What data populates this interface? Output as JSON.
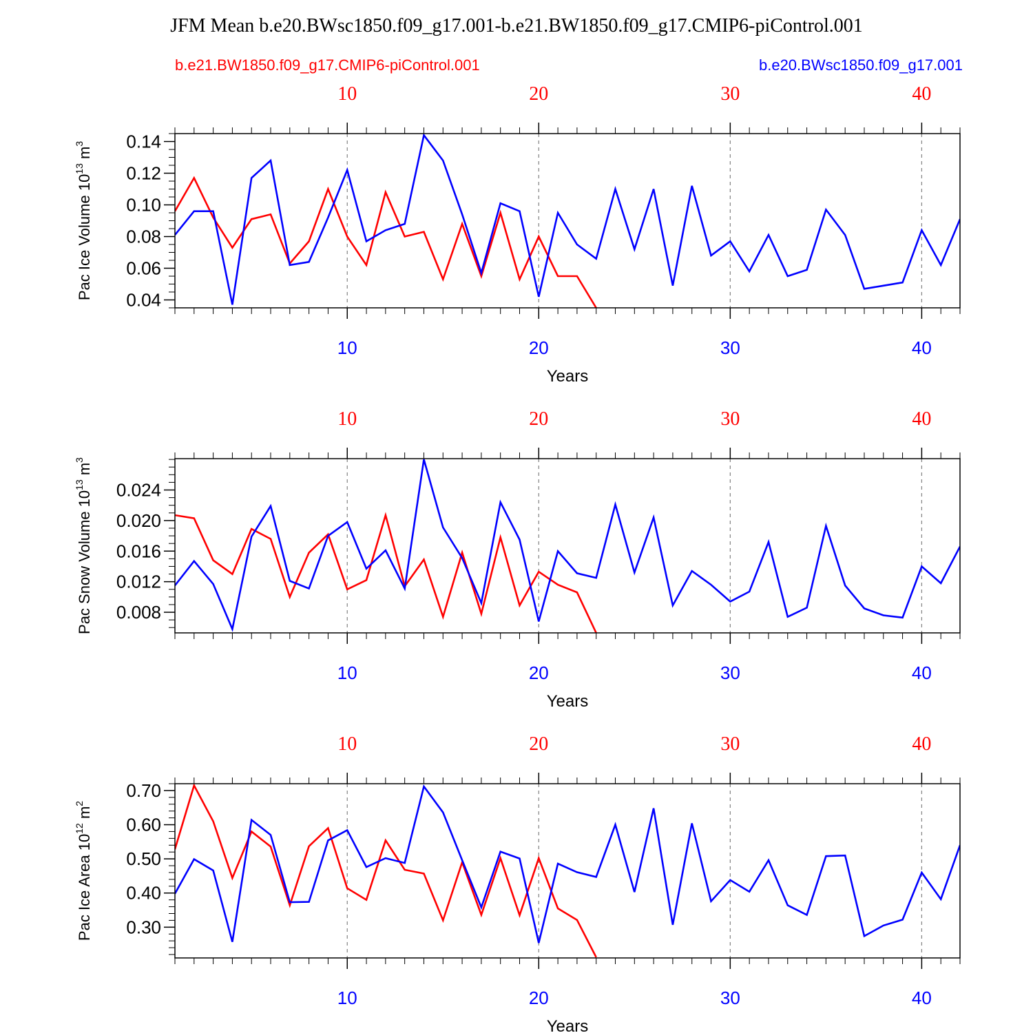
{
  "title": "JFM Mean b.e20.BWsc1850.f09_g17.001-b.e21.BW1850.f09_g17.CMIP6-piControl.001",
  "colors": {
    "case1": "#ff0000",
    "case2": "#0000ff",
    "axis": "#000000",
    "grid": "#808080"
  },
  "legend": {
    "left": "b.e21.BW1850.f09_g17.CMIP6-piControl.001",
    "right": "b.e20.BWsc1850.f09_g17.001"
  },
  "chart_data": [
    {
      "type": "line",
      "ylabel_main": "Pac Ice Volume 10",
      "ylabel_exp": "13",
      "ylabel_unit": " m",
      "ylabel_unit_exp": "3",
      "xlabel": "Years",
      "xlim": [
        1,
        42
      ],
      "ylim": [
        0.035,
        0.145
      ],
      "yticks": [
        0.04,
        0.06,
        0.08,
        0.1,
        0.12,
        0.14
      ],
      "ytick_labels": [
        "0.04",
        "0.06",
        "0.08",
        "0.10",
        "0.12",
        "0.14"
      ],
      "yminor_step": 0.005,
      "xticks": [
        10,
        20,
        30,
        40
      ],
      "xtick_labels": [
        "10",
        "20",
        "30",
        "40"
      ],
      "series": [
        {
          "name": "b.e21.BW1850.f09_g17.CMIP6-piControl.001",
          "color": "#ff0000",
          "x": [
            1,
            2,
            3,
            4,
            5,
            6,
            7,
            8,
            9,
            10,
            11,
            12,
            13,
            14,
            15,
            16,
            17,
            18,
            19,
            20,
            21,
            22,
            23
          ],
          "values": [
            0.096,
            0.117,
            0.092,
            0.073,
            0.091,
            0.094,
            0.063,
            0.077,
            0.11,
            0.08,
            0.062,
            0.108,
            0.08,
            0.083,
            0.053,
            0.088,
            0.055,
            0.095,
            0.053,
            0.08,
            0.055,
            0.055,
            0.035
          ]
        },
        {
          "name": "b.e20.BWsc1850.f09_g17.001",
          "color": "#0000ff",
          "x": [
            1,
            2,
            3,
            4,
            5,
            6,
            7,
            8,
            9,
            10,
            11,
            12,
            13,
            14,
            15,
            16,
            17,
            18,
            19,
            20,
            21,
            22,
            23,
            24,
            25,
            26,
            27,
            28,
            29,
            30,
            31,
            32,
            33,
            34,
            35,
            36,
            37,
            38,
            39,
            40,
            41,
            42
          ],
          "values": [
            0.081,
            0.096,
            0.096,
            0.037,
            0.117,
            0.128,
            0.062,
            0.064,
            0.092,
            0.122,
            0.077,
            0.084,
            0.088,
            0.144,
            0.128,
            0.094,
            0.057,
            0.101,
            0.096,
            0.042,
            0.095,
            0.075,
            0.066,
            0.11,
            0.072,
            0.11,
            0.049,
            0.112,
            0.068,
            0.077,
            0.058,
            0.081,
            0.055,
            0.059,
            0.097,
            0.081,
            0.047,
            0.049,
            0.051,
            0.084,
            0.062,
            0.091
          ]
        }
      ]
    },
    {
      "type": "line",
      "ylabel_main": "Pac Snow Volume 10",
      "ylabel_exp": "13",
      "ylabel_unit": " m",
      "ylabel_unit_exp": "3",
      "xlabel": "Years",
      "xlim": [
        1,
        42
      ],
      "ylim": [
        0.0053,
        0.0281
      ],
      "yticks": [
        0.008,
        0.012,
        0.016,
        0.02,
        0.024
      ],
      "ytick_labels": [
        "0.008",
        "0.012",
        "0.016",
        "0.020",
        "0.024"
      ],
      "yminor_step": 0.001,
      "xticks": [
        10,
        20,
        30,
        40
      ],
      "xtick_labels": [
        "10",
        "20",
        "30",
        "40"
      ],
      "series": [
        {
          "name": "b.e21.BW1850.f09_g17.CMIP6-piControl.001",
          "color": "#ff0000",
          "x": [
            1,
            2,
            3,
            4,
            5,
            6,
            7,
            8,
            9,
            10,
            11,
            12,
            13,
            14,
            15,
            16,
            17,
            18,
            19,
            20,
            21,
            22,
            23
          ],
          "values": [
            0.0207,
            0.0203,
            0.0148,
            0.013,
            0.0189,
            0.0176,
            0.01,
            0.0158,
            0.0182,
            0.011,
            0.0122,
            0.0207,
            0.0114,
            0.0149,
            0.0074,
            0.0158,
            0.0078,
            0.0178,
            0.0089,
            0.0133,
            0.0116,
            0.0106,
            0.0053
          ]
        },
        {
          "name": "b.e20.BWsc1850.f09_g17.001",
          "color": "#0000ff",
          "x": [
            1,
            2,
            3,
            4,
            5,
            6,
            7,
            8,
            9,
            10,
            11,
            12,
            13,
            14,
            15,
            16,
            17,
            18,
            19,
            20,
            21,
            22,
            23,
            24,
            25,
            26,
            27,
            28,
            29,
            30,
            31,
            32,
            33,
            34,
            35,
            36,
            37,
            38,
            39,
            40,
            41,
            42
          ],
          "values": [
            0.0115,
            0.0147,
            0.0117,
            0.0058,
            0.0179,
            0.0219,
            0.0121,
            0.0111,
            0.018,
            0.0198,
            0.0137,
            0.0161,
            0.0111,
            0.028,
            0.0191,
            0.0151,
            0.0092,
            0.0224,
            0.0175,
            0.0068,
            0.016,
            0.0131,
            0.0125,
            0.0221,
            0.0132,
            0.0204,
            0.0089,
            0.0134,
            0.0116,
            0.0094,
            0.0107,
            0.0172,
            0.0074,
            0.0086,
            0.0193,
            0.0115,
            0.0085,
            0.0076,
            0.0073,
            0.014,
            0.0118,
            0.0166
          ]
        }
      ]
    },
    {
      "type": "line",
      "ylabel_main": "Pac Ice Area 10",
      "ylabel_exp": "12",
      "ylabel_unit": " m",
      "ylabel_unit_exp": "2",
      "xlabel": "Years",
      "xlim": [
        1,
        42
      ],
      "ylim": [
        0.21,
        0.72
      ],
      "yticks": [
        0.3,
        0.4,
        0.5,
        0.6,
        0.7
      ],
      "ytick_labels": [
        "0.30",
        "0.40",
        "0.50",
        "0.60",
        "0.70"
      ],
      "yminor_step": 0.02,
      "xticks": [
        10,
        20,
        30,
        40
      ],
      "xtick_labels": [
        "10",
        "20",
        "30",
        "40"
      ],
      "series": [
        {
          "name": "b.e21.BW1850.f09_g17.CMIP6-piControl.001",
          "color": "#ff0000",
          "x": [
            1,
            2,
            3,
            4,
            5,
            6,
            7,
            8,
            9,
            10,
            11,
            12,
            13,
            14,
            15,
            16,
            17,
            18,
            19,
            20,
            21,
            22,
            23
          ],
          "values": [
            0.528,
            0.715,
            0.61,
            0.444,
            0.58,
            0.536,
            0.364,
            0.537,
            0.59,
            0.414,
            0.38,
            0.554,
            0.468,
            0.457,
            0.32,
            0.49,
            0.336,
            0.502,
            0.335,
            0.502,
            0.355,
            0.321,
            0.212
          ]
        },
        {
          "name": "b.e20.BWsc1850.f09_g17.001",
          "color": "#0000ff",
          "x": [
            1,
            2,
            3,
            4,
            5,
            6,
            7,
            8,
            9,
            10,
            11,
            12,
            13,
            14,
            15,
            16,
            17,
            18,
            19,
            20,
            21,
            22,
            23,
            24,
            25,
            26,
            27,
            28,
            29,
            30,
            31,
            32,
            33,
            34,
            35,
            36,
            37,
            38,
            39,
            40,
            41,
            42
          ],
          "values": [
            0.398,
            0.499,
            0.466,
            0.257,
            0.614,
            0.57,
            0.373,
            0.374,
            0.554,
            0.584,
            0.476,
            0.502,
            0.488,
            0.712,
            0.636,
            0.496,
            0.358,
            0.521,
            0.501,
            0.254,
            0.486,
            0.461,
            0.447,
            0.6,
            0.403,
            0.648,
            0.307,
            0.604,
            0.376,
            0.438,
            0.404,
            0.496,
            0.364,
            0.336,
            0.508,
            0.51,
            0.274,
            0.305,
            0.322,
            0.46,
            0.382,
            0.54
          ]
        }
      ]
    }
  ]
}
